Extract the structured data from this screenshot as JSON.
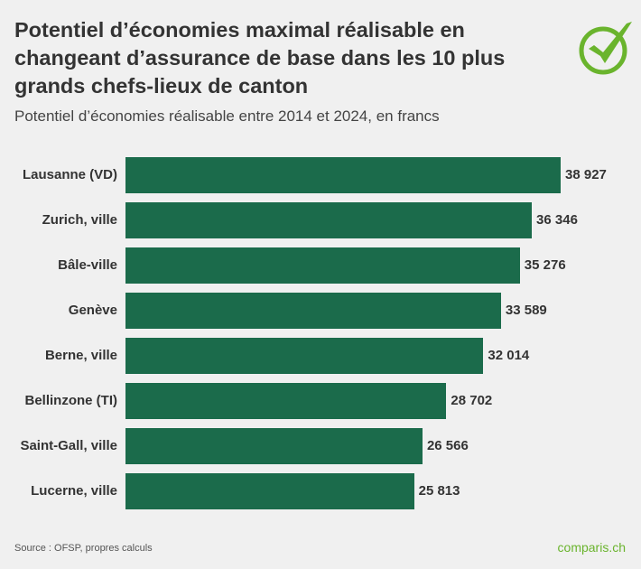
{
  "title": "Potentiel d’économies maximal réalisable en changeant d’assurance de base dans les 10 plus grands chefs-lieux de canton",
  "subtitle": "Potentiel d’économies réalisable entre 2014 et 2024, en francs",
  "source": "Source : OFSP, propres calculs",
  "brand": "comparis.ch",
  "colors": {
    "bar": "#1b6b4b",
    "brand": "#6ab42d",
    "background": "#f0f0f0"
  },
  "chart_data": {
    "type": "bar",
    "orientation": "horizontal",
    "categories": [
      "Lausanne (VD)",
      "Zurich, ville",
      "Bâle-ville",
      "Genève",
      "Berne, ville",
      "Bellinzone (TI)",
      "Saint-Gall, ville",
      "Lucerne, ville"
    ],
    "values": [
      38927,
      36346,
      35276,
      33589,
      32014,
      28702,
      26566,
      25813
    ],
    "value_labels": [
      "38 927",
      "36 346",
      "35 276",
      "33 589",
      "32 014",
      "28 702",
      "26 566",
      "25 813"
    ],
    "grid": false
  }
}
